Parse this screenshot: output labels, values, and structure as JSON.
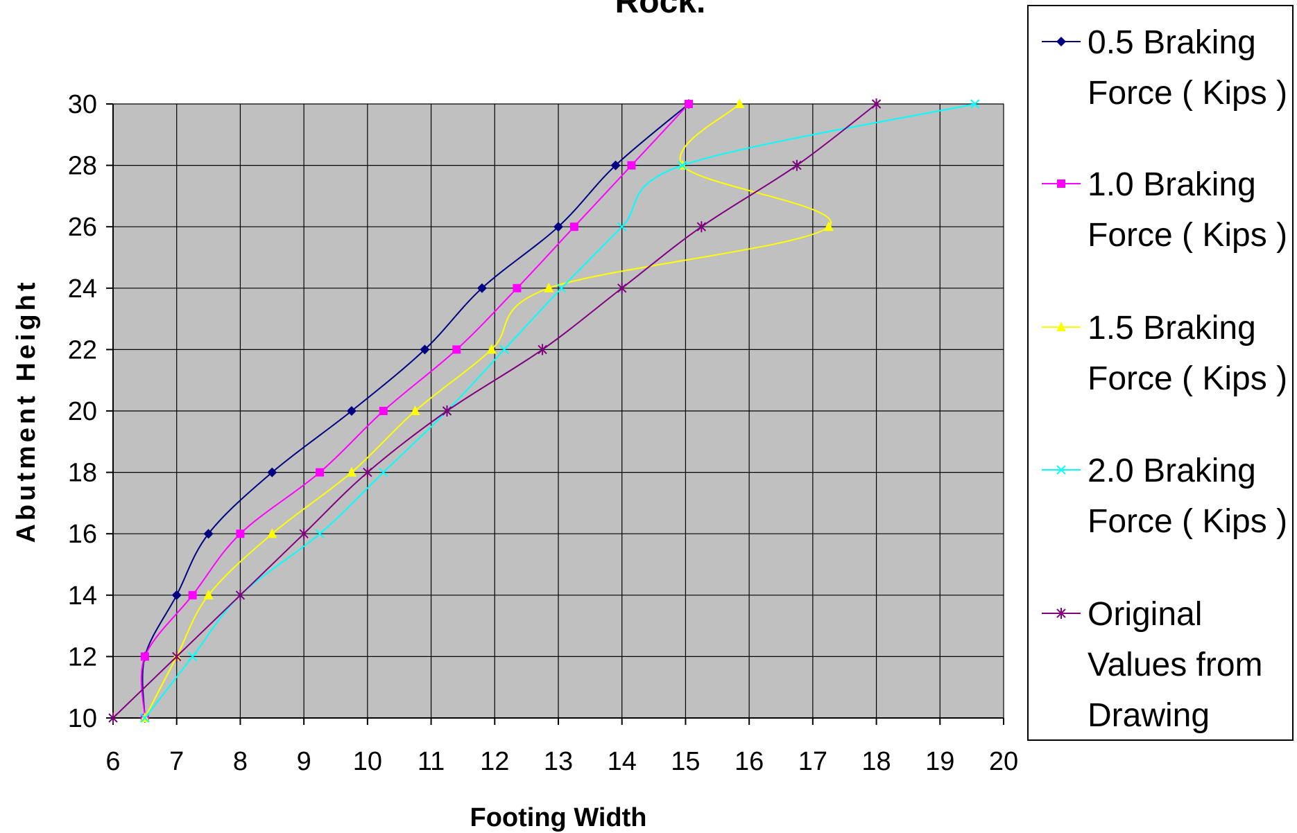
{
  "chart_data": {
    "type": "line",
    "title": "Rock.",
    "xlabel": "Footing Width",
    "ylabel": "Abutment Height",
    "xlim": [
      6,
      20
    ],
    "ylim": [
      10,
      30
    ],
    "x_ticks": [
      6,
      7,
      8,
      9,
      10,
      11,
      12,
      13,
      14,
      15,
      16,
      17,
      18,
      19,
      20
    ],
    "y_ticks": [
      10,
      12,
      14,
      16,
      18,
      20,
      22,
      24,
      26,
      28,
      30
    ],
    "grid": true,
    "legend_position": "right",
    "series": [
      {
        "name": "0.5 Braking Force ( Kips )",
        "legend_lines": [
          "0.5 Braking",
          "Force ( Kips )"
        ],
        "color": "#000080",
        "marker": "diamond",
        "points": [
          [
            6.5,
            10
          ],
          [
            6.5,
            12
          ],
          [
            7.0,
            14
          ],
          [
            7.5,
            16
          ],
          [
            8.5,
            18
          ],
          [
            9.75,
            20
          ],
          [
            10.9,
            22
          ],
          [
            11.8,
            24
          ],
          [
            13.0,
            26
          ],
          [
            13.9,
            28
          ],
          [
            15.05,
            30
          ]
        ]
      },
      {
        "name": "1.0 Braking Force ( Kips )",
        "legend_lines": [
          "1.0 Braking",
          "Force ( Kips )"
        ],
        "color": "#FF00FF",
        "marker": "square",
        "points": [
          [
            6.5,
            10
          ],
          [
            6.5,
            12
          ],
          [
            7.25,
            14
          ],
          [
            8.0,
            16
          ],
          [
            9.25,
            18
          ],
          [
            10.25,
            20
          ],
          [
            11.4,
            22
          ],
          [
            12.35,
            24
          ],
          [
            13.25,
            26
          ],
          [
            14.15,
            28
          ],
          [
            15.05,
            30
          ]
        ]
      },
      {
        "name": "1.5 Braking Force ( Kips )",
        "legend_lines": [
          "1.5 Braking",
          "Force ( Kips )"
        ],
        "color": "#FFFF00",
        "marker": "triangle",
        "points": [
          [
            6.5,
            10
          ],
          [
            7.0,
            12
          ],
          [
            7.5,
            14
          ],
          [
            8.5,
            16
          ],
          [
            9.75,
            18
          ],
          [
            10.75,
            20
          ],
          [
            11.95,
            22
          ],
          [
            12.85,
            24
          ],
          [
            17.25,
            26
          ],
          [
            14.95,
            28
          ],
          [
            15.85,
            30
          ]
        ]
      },
      {
        "name": "2.0 Braking Force ( Kips )",
        "legend_lines": [
          "2.0 Braking",
          "Force ( Kips )"
        ],
        "color": "#00FFFF",
        "marker": "x",
        "points": [
          [
            6.5,
            10
          ],
          [
            7.25,
            12
          ],
          [
            8.0,
            14
          ],
          [
            9.25,
            16
          ],
          [
            10.25,
            18
          ],
          [
            11.25,
            20
          ],
          [
            12.15,
            22
          ],
          [
            13.05,
            24
          ],
          [
            14.0,
            26
          ],
          [
            14.95,
            28
          ],
          [
            19.55,
            30
          ]
        ]
      },
      {
        "name": "Original Values from Drawing",
        "legend_lines": [
          "Original",
          "Values from",
          "Drawing"
        ],
        "color": "#800080",
        "marker": "star",
        "points": [
          [
            6.0,
            10
          ],
          [
            7.0,
            12
          ],
          [
            8.0,
            14
          ],
          [
            9.0,
            16
          ],
          [
            10.0,
            18
          ],
          [
            11.25,
            20
          ],
          [
            12.75,
            22
          ],
          [
            14.0,
            24
          ],
          [
            15.25,
            26
          ],
          [
            16.75,
            28
          ],
          [
            18.0,
            30
          ]
        ]
      }
    ]
  }
}
